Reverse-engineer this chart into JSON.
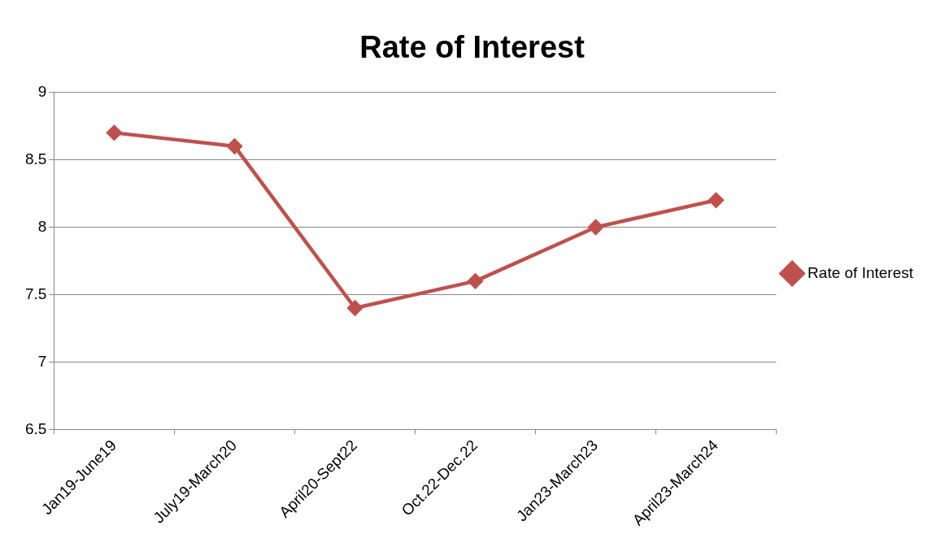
{
  "chart_data": {
    "type": "line",
    "title": "Rate of Interest",
    "categories": [
      "Jan19-June19",
      "July19-March20",
      "April20-Sept22",
      "Oct.22-Dec.22",
      "Jan23-March23",
      "April23-March24"
    ],
    "series": [
      {
        "name": "Rate of Interest",
        "color": "#c0504d",
        "values": [
          8.7,
          8.6,
          7.4,
          7.6,
          8.0,
          8.2
        ]
      }
    ],
    "ylim": [
      6.5,
      9
    ],
    "yticks": [
      6.5,
      7,
      7.5,
      8,
      8.5,
      9
    ],
    "grid": "y",
    "legend": "right",
    "marker": "diamond",
    "line_style": "solid"
  }
}
